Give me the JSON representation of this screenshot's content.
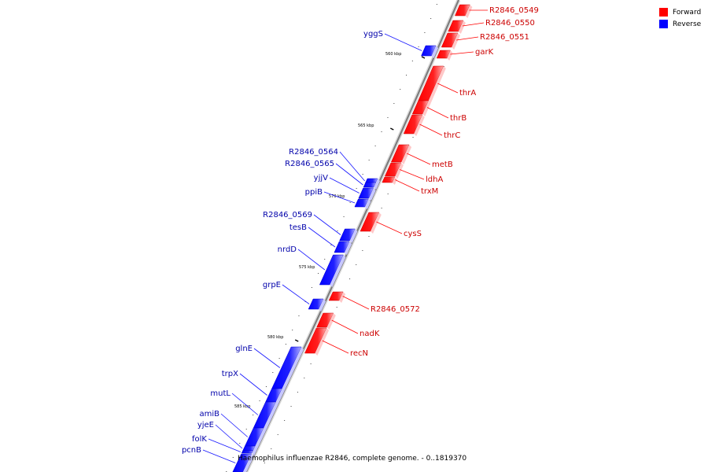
{
  "legend": {
    "items": [
      {
        "label": "Forward",
        "color": "#ff0000"
      },
      {
        "label": "Reverse",
        "color": "#0000ff"
      }
    ]
  },
  "caption": "Haemophilus influenzae R2846, complete genome. - 0..1819370",
  "colors": {
    "forward": "#ff0000",
    "reverse": "#1515ff",
    "forward_label": "#cc0000",
    "reverse_label": "#0000aa",
    "backbone": "#7a7a7a"
  },
  "scale_ticks": [
    "560 kbp",
    "565 kbp",
    "570 kbp",
    "575 kbp",
    "580 kbp",
    "585 kbp"
  ],
  "genes": [
    {
      "name": "R2846_0549",
      "strand": "forward"
    },
    {
      "name": "R2846_0550",
      "strand": "forward"
    },
    {
      "name": "R2846_0551",
      "strand": "forward"
    },
    {
      "name": "garK",
      "strand": "forward"
    },
    {
      "name": "yggS",
      "strand": "reverse"
    },
    {
      "name": "thrA",
      "strand": "forward"
    },
    {
      "name": "thrB",
      "strand": "forward"
    },
    {
      "name": "thrC",
      "strand": "forward"
    },
    {
      "name": "metB",
      "strand": "forward"
    },
    {
      "name": "ldhA",
      "strand": "forward"
    },
    {
      "name": "trxM",
      "strand": "forward"
    },
    {
      "name": "R2846_0564",
      "strand": "reverse"
    },
    {
      "name": "R2846_0565",
      "strand": "reverse"
    },
    {
      "name": "yjjV",
      "strand": "reverse"
    },
    {
      "name": "ppiB",
      "strand": "reverse"
    },
    {
      "name": "cysS",
      "strand": "forward"
    },
    {
      "name": "R2846_0569",
      "strand": "reverse"
    },
    {
      "name": "tesB",
      "strand": "reverse"
    },
    {
      "name": "nrdD",
      "strand": "reverse"
    },
    {
      "name": "grpE",
      "strand": "reverse"
    },
    {
      "name": "R2846_0572",
      "strand": "forward"
    },
    {
      "name": "nadK",
      "strand": "forward"
    },
    {
      "name": "recN",
      "strand": "forward"
    },
    {
      "name": "glnE",
      "strand": "reverse"
    },
    {
      "name": "trpX",
      "strand": "reverse"
    },
    {
      "name": "mutL",
      "strand": "reverse"
    },
    {
      "name": "amiB",
      "strand": "reverse"
    },
    {
      "name": "yjeE",
      "strand": "reverse"
    },
    {
      "name": "folK",
      "strand": "reverse"
    },
    {
      "name": "pcnB",
      "strand": "reverse"
    }
  ]
}
